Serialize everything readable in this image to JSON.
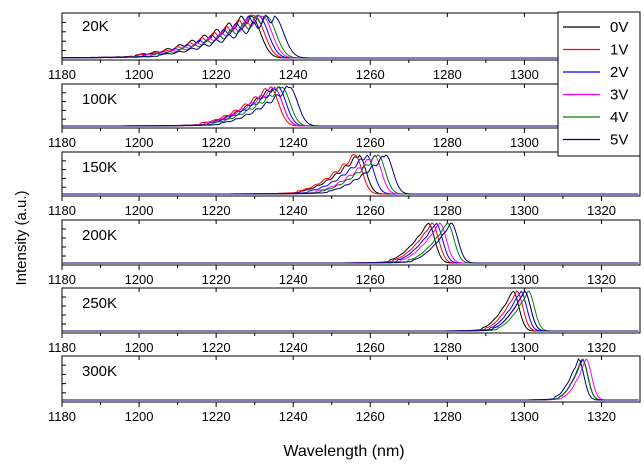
{
  "chart_data": {
    "type": "line",
    "xlabel": "Wavelength (nm)",
    "ylabel": "Intensity (a.u.)",
    "xlim": [
      1180,
      1330
    ],
    "x_ticks": [
      1180,
      1200,
      1220,
      1240,
      1260,
      1280,
      1300,
      1320
    ],
    "legend": {
      "placement": "top-right",
      "entries": [
        {
          "name": "0V",
          "color": "#000000"
        },
        {
          "name": "1V",
          "color": "#ff0000"
        },
        {
          "name": "2V",
          "color": "#0000ff"
        },
        {
          "name": "3V",
          "color": "#ff00ff"
        },
        {
          "name": "4V",
          "color": "#008000"
        },
        {
          "name": "5V",
          "color": "#000080"
        }
      ]
    },
    "panels": [
      {
        "label": "20K",
        "peak_x": [
          1229,
          1230,
          1231,
          1232,
          1233,
          1235
        ],
        "width": 30,
        "falloff": 3.5,
        "ripple": 0.14,
        "ripple_period": 3.2
      },
      {
        "label": "100K",
        "peak_x": [
          1235,
          1234,
          1236,
          1235,
          1237,
          1239
        ],
        "width": 18,
        "falloff": 3.0,
        "ripple": 0.08,
        "ripple_period": 2.6
      },
      {
        "label": "150K",
        "peak_x": [
          1257,
          1256,
          1259,
          1261,
          1262,
          1264
        ],
        "width": 15,
        "falloff": 2.6,
        "ripple": 0.07,
        "ripple_period": 2.4
      },
      {
        "label": "200K",
        "peak_x": [
          1275,
          1276,
          1277,
          1278,
          1280,
          1281
        ],
        "width": 10,
        "falloff": 2.4,
        "ripple": 0.02,
        "ripple_period": 2.2
      },
      {
        "label": "250K",
        "peak_x": [
          1297,
          1298,
          1299,
          1300,
          1301,
          1300
        ],
        "width": 8,
        "falloff": 2.2,
        "ripple": 0.02,
        "ripple_period": 2.2
      },
      {
        "label": "300K",
        "peak_x": [
          1315,
          1315,
          1315,
          1316,
          1315,
          1314
        ],
        "width": 6,
        "falloff": 2.0,
        "ripple": 0.03,
        "ripple_period": 2.0
      }
    ]
  }
}
